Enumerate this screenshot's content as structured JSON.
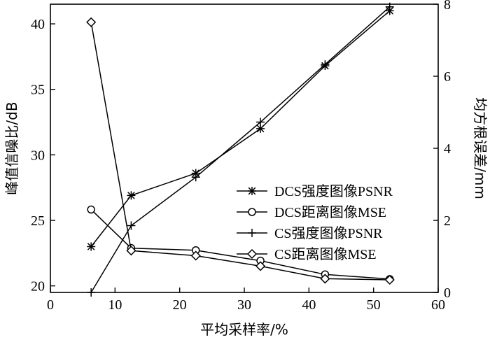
{
  "chart_data": {
    "type": "line",
    "xlabel": "平均采样率/%",
    "ylabel_left": "峰值信噪比/dB",
    "ylabel_right": "均方根误差/mm",
    "xlim": [
      0,
      60
    ],
    "ylim_left": [
      19.5,
      41.5
    ],
    "ylim_right": [
      0,
      8
    ],
    "x_ticks": [
      0,
      10,
      20,
      30,
      40,
      50,
      60
    ],
    "y_left_ticks": [
      20,
      25,
      30,
      35,
      40
    ],
    "y_right_ticks": [
      0,
      2,
      4,
      6,
      8
    ],
    "legend_position": "center-right",
    "series": [
      {
        "name": "DCS强度图像PSNR",
        "axis": "left",
        "marker": "asterisk",
        "x": [
          6.3,
          12.5,
          22.5,
          32.5,
          42.5,
          52.5
        ],
        "y": [
          23.0,
          26.9,
          28.6,
          32.0,
          36.8,
          41.0
        ]
      },
      {
        "name": "DCS距离图像MSE",
        "axis": "right",
        "marker": "circle",
        "x": [
          6.3,
          12.5,
          22.5,
          32.5,
          42.5,
          52.5
        ],
        "y": [
          2.3,
          1.23,
          1.17,
          0.88,
          0.5,
          0.37
        ]
      },
      {
        "name": "CS强度图像PSNR",
        "axis": "left",
        "marker": "plus",
        "x": [
          6.3,
          12.5,
          22.5,
          32.5,
          42.5,
          52.5
        ],
        "y": [
          19.5,
          24.6,
          28.3,
          32.5,
          36.9,
          41.3
        ]
      },
      {
        "name": "CS距离图像MSE",
        "axis": "right",
        "marker": "diamond",
        "x": [
          6.3,
          12.5,
          22.5,
          32.5,
          42.5,
          52.5
        ],
        "y": [
          7.5,
          1.16,
          1.02,
          0.73,
          0.38,
          0.35
        ]
      }
    ]
  }
}
